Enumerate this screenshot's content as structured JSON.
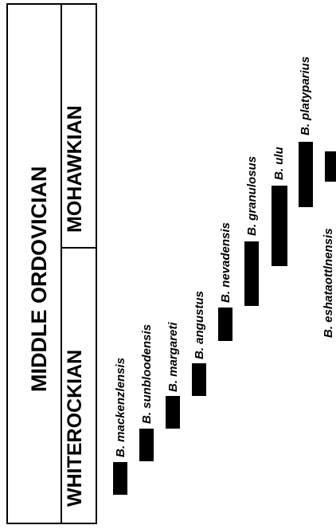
{
  "period_title": "MIDDLE  ORDOVICIAN",
  "stages": [
    {
      "id": "whiterockian",
      "label": "WHITEROCKIAN"
    },
    {
      "id": "mohawkian",
      "label": "MOHAWKIAN"
    }
  ],
  "taxa": [
    "B. mackenzlensis",
    "B. sunbloodensis",
    "B. margareti",
    "B. angustus",
    "B. nevadensis",
    "B. granulosus",
    "B. ulu",
    "B. platyparius",
    "B. eshataottlnensis"
  ]
}
